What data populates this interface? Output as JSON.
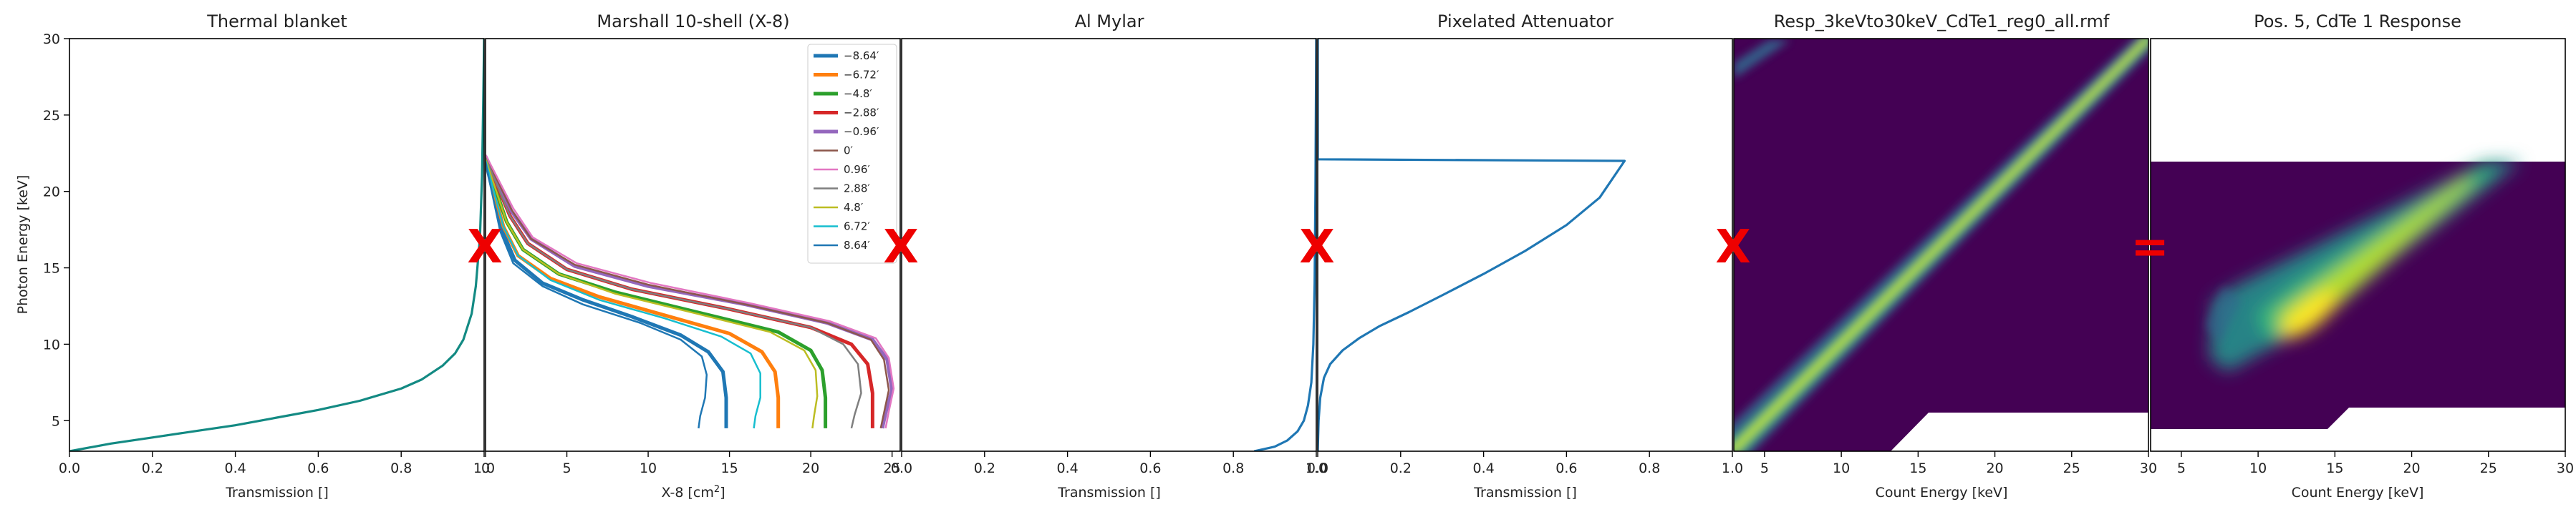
{
  "colors": {
    "teal": "#138a83",
    "blue": "#1f77b4",
    "operator": "#ee0000",
    "viridis_low": "#440154",
    "viridis_mid": "#21918c",
    "viridis_high": "#fde725"
  },
  "operators": [
    "X",
    "X",
    "X",
    "X",
    "="
  ],
  "chart_data": [
    {
      "id": "thermal",
      "type": "line",
      "title": "Thermal blanket",
      "xlabel": "Transmission []",
      "ylabel": "Photon Energy [keV]",
      "xlim": [
        0,
        1.0
      ],
      "ylim": [
        3,
        30
      ],
      "xticks": [
        "0.0",
        "0.2",
        "0.4",
        "0.6",
        "0.8",
        "1.0"
      ],
      "xtick_values": [
        0,
        0.2,
        0.4,
        0.6,
        0.8,
        1.0
      ],
      "yticks": [
        "5",
        "10",
        "15",
        "20",
        "25",
        "30"
      ],
      "ytick_values": [
        5,
        10,
        15,
        20,
        25,
        30
      ],
      "series": [
        {
          "color": "#138a83",
          "points": [
            [
              0.0,
              3.0
            ],
            [
              0.1,
              3.5
            ],
            [
              0.2,
              3.9
            ],
            [
              0.3,
              4.3
            ],
            [
              0.4,
              4.7
            ],
            [
              0.5,
              5.2
            ],
            [
              0.6,
              5.7
            ],
            [
              0.7,
              6.3
            ],
            [
              0.8,
              7.1
            ],
            [
              0.85,
              7.7
            ],
            [
              0.9,
              8.6
            ],
            [
              0.93,
              9.4
            ],
            [
              0.95,
              10.3
            ],
            [
              0.97,
              12.0
            ],
            [
              0.98,
              13.8
            ],
            [
              0.99,
              17.0
            ],
            [
              0.995,
              21.0
            ],
            [
              0.998,
              26.0
            ],
            [
              1.0,
              30.0
            ]
          ]
        }
      ]
    },
    {
      "id": "marshall",
      "type": "line",
      "title": "Marshall 10-shell (X-8)",
      "xlabel": "X-8 [cm²]",
      "xlim": [
        0,
        25.5
      ],
      "ylim": [
        3,
        30
      ],
      "xticks": [
        "0",
        "5",
        "10",
        "15",
        "20",
        "25"
      ],
      "xtick_values": [
        0,
        5,
        10,
        15,
        20,
        25
      ],
      "legend_position": "top-right",
      "series": [
        {
          "name": "−8.64′",
          "color": "#1f77b4",
          "width": 5,
          "points": [
            [
              0.0,
              22.0
            ],
            [
              1.0,
              17.5
            ],
            [
              1.8,
              15.5
            ],
            [
              3.5,
              14.0
            ],
            [
              6.0,
              12.9
            ],
            [
              9.0,
              11.8
            ],
            [
              12.0,
              10.6
            ],
            [
              13.7,
              9.5
            ],
            [
              14.6,
              8.2
            ],
            [
              14.8,
              6.5
            ],
            [
              14.8,
              4.5
            ]
          ]
        },
        {
          "name": "−6.72′",
          "color": "#ff7f0e",
          "width": 5,
          "points": [
            [
              0.0,
              22.0
            ],
            [
              1.1,
              17.7
            ],
            [
              2.0,
              15.8
            ],
            [
              4.0,
              14.3
            ],
            [
              7.0,
              13.1
            ],
            [
              11.0,
              11.9
            ],
            [
              15.0,
              10.7
            ],
            [
              17.0,
              9.5
            ],
            [
              17.8,
              8.2
            ],
            [
              18.0,
              6.5
            ],
            [
              18.0,
              4.5
            ]
          ]
        },
        {
          "name": "−4.8′",
          "color": "#2ca02c",
          "width": 5,
          "points": [
            [
              0.0,
              22.1
            ],
            [
              1.3,
              18.0
            ],
            [
              2.3,
              16.2
            ],
            [
              4.5,
              14.6
            ],
            [
              8.0,
              13.4
            ],
            [
              13.0,
              12.1
            ],
            [
              18.0,
              10.8
            ],
            [
              20.0,
              9.6
            ],
            [
              20.7,
              8.3
            ],
            [
              20.9,
              6.5
            ],
            [
              20.9,
              4.5
            ]
          ]
        },
        {
          "name": "−2.88′",
          "color": "#d62728",
          "width": 5,
          "points": [
            [
              0.0,
              22.2
            ],
            [
              1.5,
              18.4
            ],
            [
              2.6,
              16.6
            ],
            [
              5.0,
              14.9
            ],
            [
              9.0,
              13.6
            ],
            [
              15.0,
              12.3
            ],
            [
              20.0,
              11.1
            ],
            [
              22.5,
              10.0
            ],
            [
              23.5,
              8.7
            ],
            [
              23.8,
              6.8
            ],
            [
              23.8,
              4.5
            ]
          ]
        },
        {
          "name": "−0.96′",
          "color": "#9467bd",
          "width": 5,
          "points": [
            [
              0.0,
              22.3
            ],
            [
              1.6,
              18.7
            ],
            [
              2.8,
              16.9
            ],
            [
              5.5,
              15.1
            ],
            [
              10.0,
              13.8
            ],
            [
              16.0,
              12.6
            ],
            [
              21.0,
              11.4
            ],
            [
              23.8,
              10.3
            ],
            [
              24.7,
              9.0
            ],
            [
              25.0,
              7.0
            ],
            [
              24.6,
              5.5
            ],
            [
              24.4,
              4.5
            ]
          ]
        },
        {
          "name": "0′",
          "color": "#8c564b",
          "width": 2.5,
          "points": [
            [
              0.0,
              22.3
            ],
            [
              1.6,
              18.8
            ],
            [
              2.8,
              16.9
            ],
            [
              5.5,
              15.2
            ],
            [
              10.0,
              13.9
            ],
            [
              16.0,
              12.6
            ],
            [
              21.0,
              11.4
            ],
            [
              23.7,
              10.3
            ],
            [
              24.5,
              9.0
            ],
            [
              24.8,
              7.0
            ],
            [
              24.5,
              5.5
            ],
            [
              24.3,
              4.5
            ]
          ]
        },
        {
          "name": "0.96′",
          "color": "#e377c2",
          "width": 2.5,
          "points": [
            [
              0.0,
              22.4
            ],
            [
              1.7,
              18.9
            ],
            [
              2.9,
              17.0
            ],
            [
              5.6,
              15.3
            ],
            [
              10.2,
              14.0
            ],
            [
              16.2,
              12.7
            ],
            [
              21.2,
              11.5
            ],
            [
              24.0,
              10.4
            ],
            [
              24.8,
              9.1
            ],
            [
              25.1,
              7.1
            ],
            [
              24.8,
              5.6
            ],
            [
              24.6,
              4.5
            ]
          ]
        },
        {
          "name": "2.88′",
          "color": "#7f7f7f",
          "width": 2.5,
          "points": [
            [
              0.0,
              22.2
            ],
            [
              1.5,
              18.4
            ],
            [
              2.6,
              16.6
            ],
            [
              5.0,
              14.9
            ],
            [
              9.0,
              13.6
            ],
            [
              15.0,
              12.3
            ],
            [
              20.0,
              11.1
            ],
            [
              22.0,
              10.0
            ],
            [
              22.9,
              8.7
            ],
            [
              23.1,
              6.8
            ],
            [
              22.7,
              5.4
            ],
            [
              22.5,
              4.5
            ]
          ]
        },
        {
          "name": "4.8′",
          "color": "#bcbd22",
          "width": 2.5,
          "points": [
            [
              0.0,
              22.1
            ],
            [
              1.3,
              18.0
            ],
            [
              2.3,
              16.2
            ],
            [
              4.5,
              14.6
            ],
            [
              8.0,
              13.3
            ],
            [
              13.0,
              12.0
            ],
            [
              17.5,
              10.8
            ],
            [
              19.6,
              9.6
            ],
            [
              20.3,
              8.3
            ],
            [
              20.4,
              6.6
            ],
            [
              20.2,
              5.3
            ],
            [
              20.1,
              4.5
            ]
          ]
        },
        {
          "name": "6.72′",
          "color": "#17becf",
          "width": 2.5,
          "points": [
            [
              0.0,
              22.0
            ],
            [
              1.1,
              17.7
            ],
            [
              2.0,
              15.8
            ],
            [
              4.0,
              14.2
            ],
            [
              7.0,
              12.9
            ],
            [
              11.0,
              11.7
            ],
            [
              14.5,
              10.5
            ],
            [
              16.3,
              9.4
            ],
            [
              16.9,
              8.1
            ],
            [
              16.9,
              6.5
            ],
            [
              16.6,
              5.3
            ],
            [
              16.5,
              4.5
            ]
          ]
        },
        {
          "name": "8.64′",
          "color": "#1f77b4",
          "width": 2.5,
          "points": [
            [
              0.0,
              21.9
            ],
            [
              0.9,
              17.4
            ],
            [
              1.7,
              15.3
            ],
            [
              3.5,
              13.8
            ],
            [
              6.0,
              12.6
            ],
            [
              9.5,
              11.4
            ],
            [
              12.0,
              10.3
            ],
            [
              13.3,
              9.2
            ],
            [
              13.6,
              8.0
            ],
            [
              13.5,
              6.5
            ],
            [
              13.2,
              5.3
            ],
            [
              13.1,
              4.5
            ]
          ]
        }
      ]
    },
    {
      "id": "mylar",
      "type": "line",
      "title": "Al Mylar",
      "xlabel": "Transmission []",
      "xlim": [
        0,
        1.0
      ],
      "ylim": [
        3,
        30
      ],
      "xticks": [
        "0.0",
        "0.2",
        "0.4",
        "0.6",
        "0.8",
        "1.0"
      ],
      "xtick_values": [
        0,
        0.2,
        0.4,
        0.6,
        0.8,
        1.0
      ],
      "series": [
        {
          "color": "#1f77b4",
          "points": [
            [
              0.85,
              3.0
            ],
            [
              0.9,
              3.3
            ],
            [
              0.93,
              3.7
            ],
            [
              0.955,
              4.3
            ],
            [
              0.97,
              5.0
            ],
            [
              0.98,
              6.0
            ],
            [
              0.988,
              7.5
            ],
            [
              0.993,
              10.0
            ],
            [
              0.996,
              14.0
            ],
            [
              0.998,
              20.0
            ],
            [
              0.999,
              25.0
            ],
            [
              1.0,
              30.0
            ]
          ]
        }
      ]
    },
    {
      "id": "attenuator",
      "type": "line",
      "title": "Pixelated Attenuator",
      "xlabel": "Transmission []",
      "xlim": [
        0,
        1.0
      ],
      "ylim": [
        3,
        30
      ],
      "xticks": [
        "0.0",
        "0.2",
        "0.4",
        "0.6",
        "0.8",
        "1.0"
      ],
      "xtick_values": [
        0,
        0.2,
        0.4,
        0.6,
        0.8,
        1.0
      ],
      "series": [
        {
          "color": "#1f77b4",
          "points": [
            [
              0.0,
              3.0
            ],
            [
              0.002,
              5.0
            ],
            [
              0.006,
              6.5
            ],
            [
              0.015,
              7.8
            ],
            [
              0.03,
              8.7
            ],
            [
              0.06,
              9.6
            ],
            [
              0.1,
              10.4
            ],
            [
              0.15,
              11.2
            ],
            [
              0.22,
              12.1
            ],
            [
              0.3,
              13.2
            ],
            [
              0.4,
              14.6
            ],
            [
              0.5,
              16.1
            ],
            [
              0.6,
              17.8
            ],
            [
              0.68,
              19.6
            ],
            [
              0.74,
              22.0
            ],
            [
              0.0,
              22.1
            ],
            [
              0.0,
              30.0
            ]
          ]
        }
      ]
    },
    {
      "id": "rmf",
      "type": "heatmap",
      "title": "Resp_3keVto30keV_CdTe1_reg0_all.rmf",
      "xlabel": "Count Energy [keV]",
      "xlim": [
        3,
        30
      ],
      "ylim": [
        3,
        30
      ],
      "xticks": [
        "5",
        "10",
        "15",
        "20",
        "25",
        "30"
      ],
      "xtick_values": [
        5,
        10,
        15,
        20,
        25,
        30
      ],
      "description_values": {
        "diagonal": "photon energy ≈ count energy",
        "max": 1.0
      }
    },
    {
      "id": "response",
      "type": "heatmap",
      "title": "Pos. 5, CdTe 1 Response",
      "xlabel": "Count Energy [keV]",
      "xlim": [
        3,
        30
      ],
      "ylim": [
        3,
        30
      ],
      "xticks": [
        "5",
        "10",
        "15",
        "20",
        "25",
        "30"
      ],
      "xtick_values": [
        5,
        10,
        15,
        20,
        25,
        30
      ],
      "description_values": {
        "peak_center": [
          13,
          13
        ],
        "upper_cutoff": 22
      }
    }
  ]
}
